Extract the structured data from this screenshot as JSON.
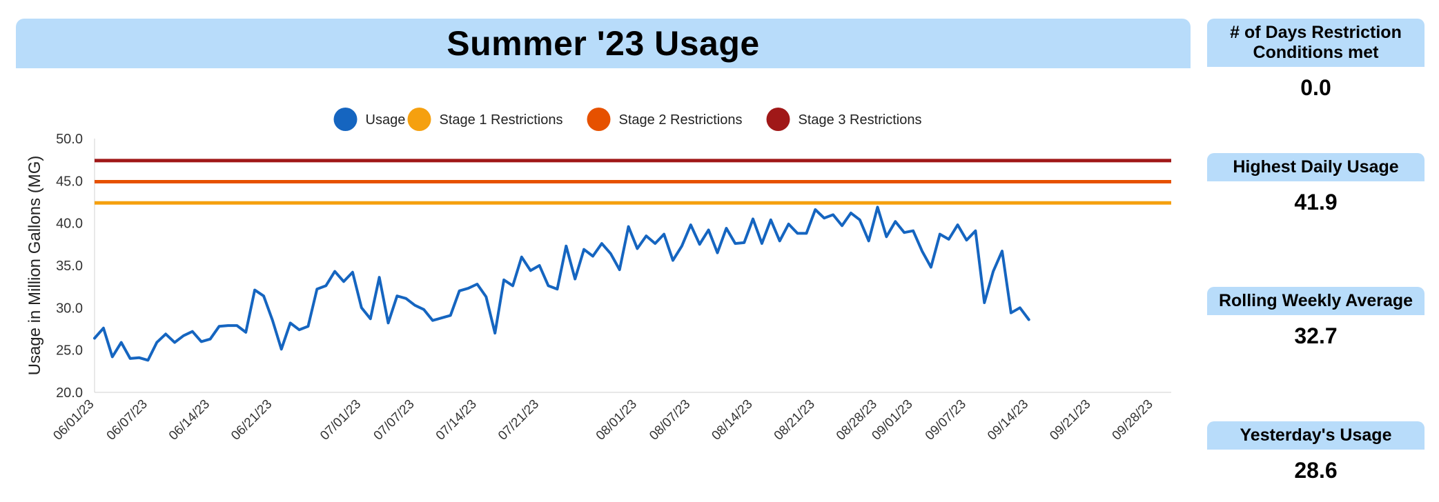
{
  "title": "Summer '23 Usage",
  "kpis": [
    {
      "label": "# of Days Restriction Conditions met",
      "value": "0.0"
    },
    {
      "label": "Highest Daily Usage",
      "value": "41.9"
    },
    {
      "label": "Rolling Weekly Average",
      "value": "32.7"
    },
    {
      "label": "Yesterday's Usage",
      "value": "28.6"
    }
  ],
  "colors": {
    "usage": "#1565c0",
    "stage1": "#f5a00f",
    "stage2": "#e65100",
    "stage3": "#a01818",
    "header_bg": "#b8dcfa"
  },
  "chart_data": {
    "type": "line",
    "title": "",
    "xlabel": "",
    "ylabel": "Usage in Million Gallons (MG)",
    "ylim": [
      20,
      50
    ],
    "yticks": [
      "20.0",
      "25.0",
      "30.0",
      "35.0",
      "40.0",
      "45.0",
      "50.0"
    ],
    "xlim": [
      "2023-06-01",
      "2023-09-30"
    ],
    "xticks": [
      "06/01/23",
      "06/07/23",
      "06/14/23",
      "06/21/23",
      "07/01/23",
      "07/07/23",
      "07/14/23",
      "07/21/23",
      "08/01/23",
      "08/07/23",
      "08/14/23",
      "08/21/23",
      "08/28/23",
      "09/01/23",
      "09/07/23",
      "09/14/23",
      "09/21/23",
      "09/28/23"
    ],
    "legend_position": "top",
    "grid": false,
    "series": [
      {
        "name": "Usage",
        "x_start": "2023-06-01",
        "values": [
          26.4,
          27.6,
          24.2,
          25.9,
          24.0,
          24.1,
          23.8,
          25.9,
          26.9,
          25.9,
          26.7,
          27.2,
          26.0,
          26.3,
          27.8,
          27.9,
          27.9,
          27.1,
          32.1,
          31.4,
          28.5,
          25.1,
          28.2,
          27.4,
          27.8,
          32.2,
          32.6,
          34.3,
          33.1,
          34.2,
          30.0,
          28.7,
          33.6,
          28.2,
          31.4,
          31.1,
          30.3,
          29.8,
          28.5,
          28.8,
          29.1,
          32.0,
          32.3,
          32.8,
          31.3,
          27.0,
          33.3,
          32.6,
          36.0,
          34.4,
          35.0,
          32.6,
          32.2,
          37.3,
          33.4,
          36.9,
          36.1,
          37.6,
          36.4,
          34.5,
          39.6,
          37.0,
          38.5,
          37.6,
          38.7,
          35.6,
          37.3,
          39.8,
          37.5,
          39.2,
          36.5,
          39.4,
          37.6,
          37.7,
          40.5,
          37.6,
          40.4,
          37.9,
          39.9,
          38.8,
          38.8,
          41.6,
          40.6,
          41.0,
          39.7,
          41.2,
          40.4,
          37.9,
          41.9,
          38.4,
          40.2,
          38.9,
          39.1,
          36.7,
          34.8,
          38.7,
          38.1,
          39.8,
          38.0,
          39.1,
          30.6,
          34.3,
          36.7,
          29.4,
          30.0,
          28.6
        ]
      },
      {
        "name": "Stage 1 Restrictions",
        "constant": 42.4
      },
      {
        "name": "Stage 2 Restrictions",
        "constant": 44.9
      },
      {
        "name": "Stage 3 Restrictions",
        "constant": 47.4
      }
    ]
  }
}
